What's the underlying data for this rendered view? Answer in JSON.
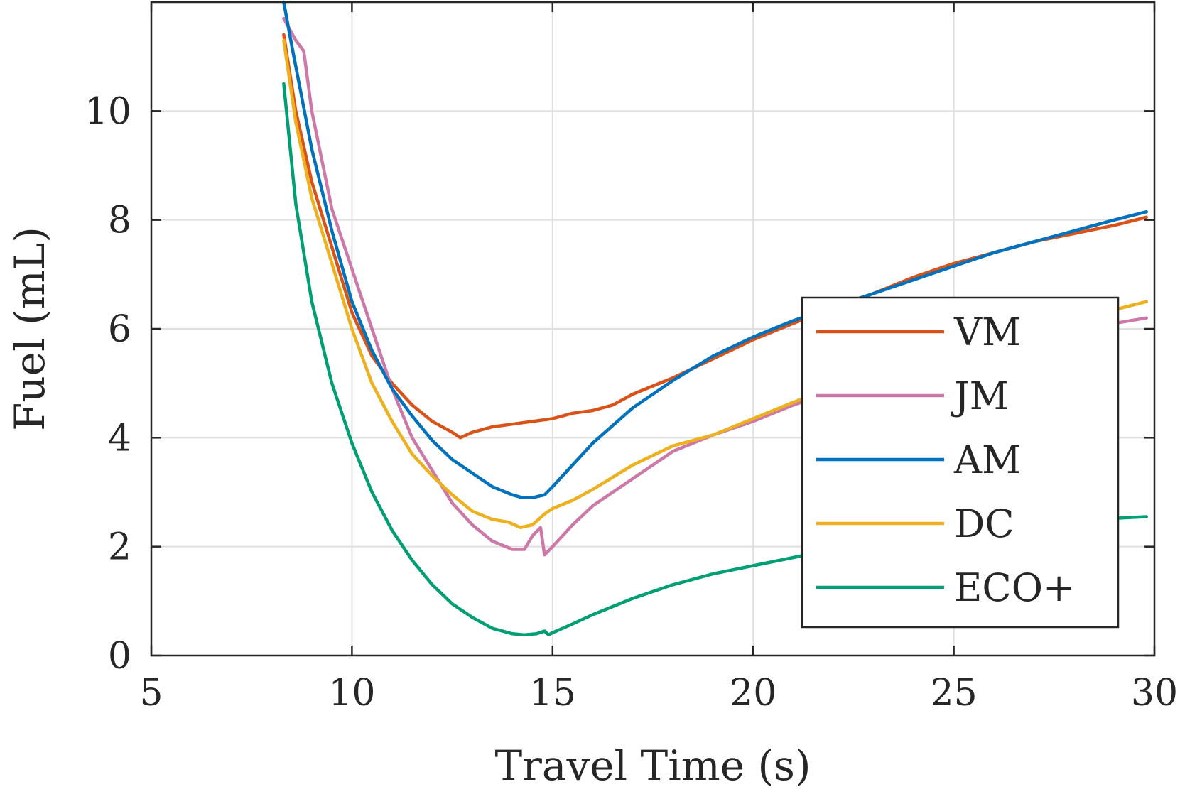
{
  "chart_data": {
    "type": "line",
    "xlabel": "Travel Time (s)",
    "ylabel": "Fuel (mL)",
    "xlim": [
      5,
      30
    ],
    "ylim": [
      0,
      12
    ],
    "xticks": [
      5,
      10,
      15,
      20,
      25,
      30
    ],
    "yticks": [
      0,
      2,
      4,
      6,
      8,
      10
    ],
    "grid": true,
    "legend_position": "right",
    "series": [
      {
        "name": "VM",
        "color": "#D95319",
        "x": [
          8.3,
          8.6,
          9.0,
          9.5,
          10.0,
          10.5,
          11.0,
          11.5,
          12.0,
          12.5,
          12.7,
          13.0,
          13.5,
          14.0,
          14.5,
          15.0,
          15.5,
          16.0,
          16.5,
          17.0,
          18.0,
          19.0,
          20.0,
          21.0,
          22.0,
          23.0,
          24.0,
          25.0,
          26.0,
          27.0,
          28.0,
          29.0,
          29.8
        ],
        "y": [
          11.4,
          10.0,
          8.7,
          7.5,
          6.3,
          5.5,
          5.0,
          4.6,
          4.3,
          4.1,
          4.0,
          4.1,
          4.2,
          4.25,
          4.3,
          4.35,
          4.45,
          4.5,
          4.6,
          4.8,
          5.1,
          5.45,
          5.8,
          6.1,
          6.4,
          6.65,
          6.95,
          7.2,
          7.4,
          7.6,
          7.75,
          7.9,
          8.05
        ]
      },
      {
        "name": "JM",
        "color": "#CC79A7",
        "x": [
          8.3,
          8.6,
          8.8,
          9.0,
          9.5,
          10.0,
          10.5,
          11.0,
          11.5,
          12.0,
          12.5,
          13.0,
          13.5,
          14.0,
          14.3,
          14.5,
          14.7,
          14.8,
          15.0,
          15.5,
          16.0,
          17.0,
          18.0,
          19.0,
          20.0,
          21.0,
          22.0,
          23.0,
          24.0,
          25.0,
          26.0,
          27.0,
          28.0,
          29.0,
          29.8
        ],
        "y": [
          11.7,
          11.3,
          11.1,
          10.0,
          8.2,
          7.1,
          6.0,
          4.9,
          4.0,
          3.4,
          2.8,
          2.4,
          2.1,
          1.95,
          1.95,
          2.2,
          2.35,
          1.85,
          2.0,
          2.4,
          2.75,
          3.25,
          3.75,
          4.05,
          4.3,
          4.6,
          4.85,
          5.1,
          5.3,
          5.5,
          5.7,
          5.85,
          6.0,
          6.1,
          6.2
        ]
      },
      {
        "name": "AM",
        "color": "#0072BD",
        "x": [
          8.3,
          8.5,
          9.0,
          9.5,
          10.0,
          10.5,
          11.0,
          11.5,
          12.0,
          12.5,
          13.0,
          13.5,
          14.0,
          14.25,
          14.5,
          14.8,
          15.0,
          15.5,
          16.0,
          17.0,
          18.0,
          19.0,
          20.0,
          21.0,
          22.0,
          23.0,
          24.0,
          25.0,
          26.0,
          27.0,
          28.0,
          29.0,
          29.8
        ],
        "y": [
          12.0,
          11.2,
          9.3,
          7.8,
          6.5,
          5.6,
          4.9,
          4.4,
          3.95,
          3.6,
          3.35,
          3.1,
          2.95,
          2.9,
          2.9,
          2.95,
          3.1,
          3.5,
          3.9,
          4.55,
          5.05,
          5.5,
          5.85,
          6.15,
          6.4,
          6.65,
          6.9,
          7.15,
          7.4,
          7.6,
          7.8,
          8.0,
          8.15
        ]
      },
      {
        "name": "DC",
        "color": "#EDB120",
        "x": [
          8.3,
          8.6,
          9.0,
          9.5,
          10.0,
          10.5,
          11.0,
          11.5,
          12.0,
          12.5,
          13.0,
          13.5,
          13.9,
          14.2,
          14.5,
          14.8,
          15.0,
          15.5,
          16.0,
          17.0,
          18.0,
          19.0,
          20.0,
          21.0,
          22.0,
          23.0,
          24.0,
          25.0,
          26.0,
          27.0,
          28.0,
          29.0,
          29.8
        ],
        "y": [
          11.3,
          9.8,
          8.4,
          7.2,
          6.0,
          5.0,
          4.3,
          3.7,
          3.3,
          2.95,
          2.65,
          2.5,
          2.45,
          2.35,
          2.4,
          2.6,
          2.7,
          2.85,
          3.05,
          3.5,
          3.85,
          4.05,
          4.35,
          4.65,
          4.95,
          5.2,
          5.45,
          5.65,
          5.85,
          6.05,
          6.2,
          6.35,
          6.5
        ]
      },
      {
        "name": "ECO+",
        "color": "#009E73",
        "x": [
          8.3,
          8.6,
          9.0,
          9.5,
          10.0,
          10.5,
          11.0,
          11.5,
          12.0,
          12.5,
          13.0,
          13.5,
          14.0,
          14.3,
          14.6,
          14.8,
          14.9,
          15.0,
          15.5,
          16.0,
          17.0,
          18.0,
          19.0,
          20.0,
          21.0,
          22.0,
          23.0,
          24.0,
          25.0,
          26.0,
          27.0,
          28.0,
          29.0,
          29.8
        ],
        "y": [
          10.5,
          8.3,
          6.5,
          5.0,
          3.9,
          3.0,
          2.3,
          1.75,
          1.3,
          0.95,
          0.7,
          0.5,
          0.4,
          0.38,
          0.4,
          0.45,
          0.38,
          0.42,
          0.58,
          0.75,
          1.05,
          1.3,
          1.5,
          1.65,
          1.8,
          1.95,
          2.05,
          2.15,
          2.25,
          2.35,
          2.42,
          2.48,
          2.52,
          2.55
        ]
      }
    ]
  }
}
